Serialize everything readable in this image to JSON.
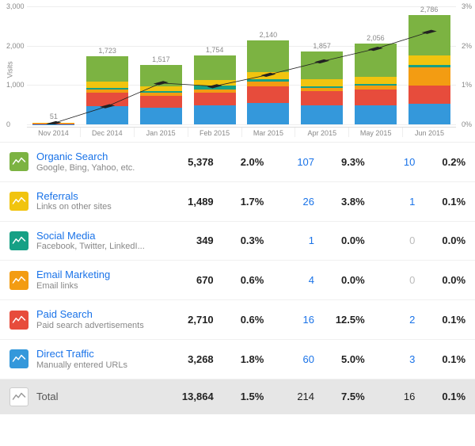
{
  "chart": {
    "type": "stacked-bar-with-line",
    "ylabel": "Visits",
    "ymax": 3000,
    "yticks": [
      0,
      1000,
      2000,
      3000
    ],
    "right_ticks": [
      "0%",
      "1%",
      "2%",
      "3%"
    ],
    "bg_color": "#ffffff",
    "grid_color": "#eeeeee",
    "text_color": "#888888",
    "line_color": "#222222",
    "marker_style": "diamond",
    "categories": [
      "Nov 2014",
      "Dec 2014",
      "Jan 2015",
      "Feb 2015",
      "Mar 2015",
      "Apr 2015",
      "May 2015",
      "Jun 2015"
    ],
    "bar_totals": [
      51,
      1723,
      1517,
      1754,
      2140,
      1857,
      2056,
      2786
    ],
    "series": [
      {
        "name": "direct",
        "color": "#3498db",
        "values": [
          10,
          460,
          420,
          480,
          550,
          480,
          490,
          520
        ]
      },
      {
        "name": "paid",
        "color": "#e74c3c",
        "values": [
          10,
          340,
          300,
          320,
          420,
          360,
          390,
          460
        ]
      },
      {
        "name": "email",
        "color": "#f39c12",
        "values": [
          5,
          90,
          80,
          90,
          110,
          90,
          100,
          470
        ]
      },
      {
        "name": "social",
        "color": "#16a085",
        "values": [
          3,
          40,
          40,
          90,
          60,
          40,
          50,
          60
        ]
      },
      {
        "name": "referrals",
        "color": "#f1c40f",
        "values": [
          5,
          150,
          130,
          150,
          200,
          170,
          180,
          240
        ]
      },
      {
        "name": "organic",
        "color": "#7cb342",
        "values": [
          18,
          643,
          547,
          624,
          800,
          717,
          846,
          1036
        ]
      }
    ],
    "line_values": [
      30,
      460,
      1050,
      970,
      1260,
      1600,
      1920,
      2350
    ]
  },
  "channel_colors": {
    "organic": "#7cb342",
    "referrals": "#f1c40f",
    "social": "#16a085",
    "email": "#f39c12",
    "paid": "#e74c3c",
    "direct": "#3498db",
    "total": "#ffffff"
  },
  "rows": [
    {
      "key": "organic",
      "name": "Organic Search",
      "sub": "Google, Bing, Yahoo, etc.",
      "v1": "5,378",
      "v2": "2.0%",
      "v3": "107",
      "v3_style": "link",
      "v4": "9.3%",
      "v5": "10",
      "v5_style": "link",
      "v6": "0.2%"
    },
    {
      "key": "referrals",
      "name": "Referrals",
      "sub": "Links on other sites",
      "v1": "1,489",
      "v2": "1.7%",
      "v3": "26",
      "v3_style": "link",
      "v4": "3.8%",
      "v5": "1",
      "v5_style": "link",
      "v6": "0.1%"
    },
    {
      "key": "social",
      "name": "Social Media",
      "sub": "Facebook, Twitter, LinkedI...",
      "v1": "349",
      "v2": "0.3%",
      "v3": "1",
      "v3_style": "link",
      "v4": "0.0%",
      "v5": "0",
      "v5_style": "muted",
      "v6": "0.0%"
    },
    {
      "key": "email",
      "name": "Email Marketing",
      "sub": "Email links",
      "v1": "670",
      "v2": "0.6%",
      "v3": "4",
      "v3_style": "link",
      "v4": "0.0%",
      "v5": "0",
      "v5_style": "muted",
      "v6": "0.0%"
    },
    {
      "key": "paid",
      "name": "Paid Search",
      "sub": "Paid search advertisements",
      "v1": "2,710",
      "v2": "0.6%",
      "v3": "16",
      "v3_style": "link",
      "v4": "12.5%",
      "v5": "2",
      "v5_style": "link",
      "v6": "0.1%"
    },
    {
      "key": "direct",
      "name": "Direct Traffic",
      "sub": "Manually entered URLs",
      "v1": "3,268",
      "v2": "1.8%",
      "v3": "60",
      "v3_style": "link",
      "v4": "5.0%",
      "v5": "3",
      "v5_style": "link",
      "v6": "0.1%"
    }
  ],
  "total_row": {
    "key": "total",
    "name": "Total",
    "sub": "",
    "v1": "13,864",
    "v2": "1.5%",
    "v3": "214",
    "v3_style": "",
    "v4": "7.5%",
    "v5": "16",
    "v5_style": "",
    "v6": "0.1%"
  }
}
